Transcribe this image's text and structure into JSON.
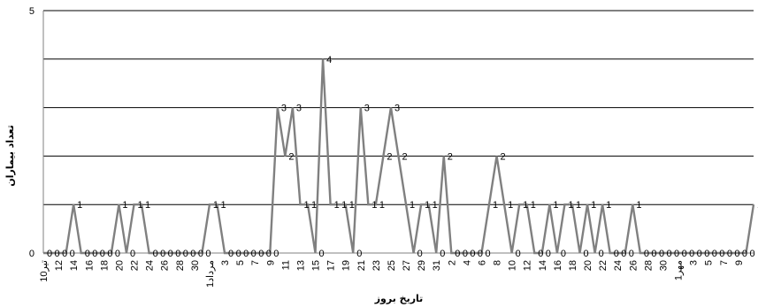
{
  "chart_data": {
    "type": "line",
    "xlabel": "تاریخ بروز",
    "ylabel": "تعداد بیماران",
    "ylim": [
      0,
      5
    ],
    "yticks": [
      0,
      5
    ],
    "grid": true,
    "colors": {
      "series": "#808080",
      "grid": "#000000"
    },
    "x_tick_labels": [
      "10تیر",
      "12",
      "14",
      "16",
      "18",
      "20",
      "22",
      "24",
      "26",
      "28",
      "30",
      "1مرداد",
      "3",
      "5",
      "7",
      "9",
      "11",
      "13",
      "15",
      "17",
      "19",
      "21",
      "23",
      "25",
      "27",
      "29",
      "31",
      "2",
      "4",
      "6",
      "8",
      "10",
      "12",
      "14",
      "16",
      "18",
      "20",
      "22",
      "24",
      "26",
      "28",
      "30",
      "1مهر",
      "3",
      "5",
      "7",
      "9"
    ],
    "values": [
      0,
      0,
      0,
      0,
      1,
      0,
      0,
      0,
      0,
      0,
      1,
      0,
      1,
      1,
      0,
      0,
      0,
      0,
      0,
      0,
      0,
      0,
      1,
      1,
      0,
      0,
      0,
      0,
      0,
      0,
      0,
      3,
      2,
      3,
      1,
      1,
      0,
      4,
      1,
      1,
      1,
      0,
      3,
      1,
      1,
      2,
      3,
      2,
      1,
      0,
      1,
      1,
      0,
      2,
      0,
      0,
      0,
      0,
      0,
      1,
      2,
      1,
      0,
      1,
      1,
      0,
      0,
      1,
      0,
      1,
      1,
      0,
      1,
      0,
      1,
      0,
      0,
      0,
      1,
      0,
      0,
      0,
      0,
      0,
      0,
      0,
      0,
      0,
      0,
      0,
      0,
      0,
      0,
      0,
      1
    ],
    "data_labels": [
      "0",
      "0",
      "0",
      "0",
      "1",
      "0",
      "0",
      "0",
      "0",
      "0",
      "1",
      "0",
      "1",
      "1",
      "0",
      "0",
      "0",
      "0",
      "0",
      "0",
      "0",
      "0",
      "1",
      "1",
      "0",
      "0",
      "0",
      "0",
      "0",
      "0",
      "0",
      "3",
      "2",
      "3",
      "1",
      "1",
      "0",
      "4",
      "1",
      "1",
      "1",
      "0",
      "3",
      "1",
      "1",
      "2",
      "3",
      "2",
      "1",
      "0",
      "1",
      "1",
      "0",
      "2",
      "0",
      "0",
      "0",
      "0",
      "0",
      "1",
      "2",
      "1",
      "0",
      "1",
      "1",
      "0",
      "0",
      "1",
      "0",
      "1",
      "1",
      "0",
      "1",
      "0",
      "1",
      "0",
      "0",
      "0",
      "1",
      "0",
      "0",
      "0",
      "0",
      "0",
      "0",
      "0",
      "0",
      "0",
      "0",
      "0",
      "0",
      "0",
      "0",
      "0",
      "1"
    ]
  }
}
